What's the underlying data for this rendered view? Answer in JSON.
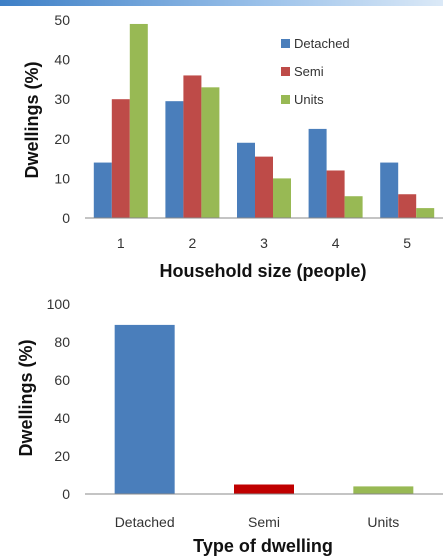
{
  "chart_data": [
    {
      "type": "bar",
      "xlabel": "Household size (people)",
      "ylabel": "Dwellings (%)",
      "categories": [
        "1",
        "2",
        "3",
        "4",
        "5"
      ],
      "ylim": [
        0,
        50
      ],
      "yticks": [
        0,
        10,
        20,
        30,
        40,
        50
      ],
      "grid": false,
      "legend": "top-right",
      "series": [
        {
          "name": "Detached",
          "color": "#4a7ebb",
          "values": [
            14,
            29.5,
            19,
            22.5,
            14
          ]
        },
        {
          "name": "Semi",
          "color": "#be4b48",
          "values": [
            30,
            36,
            15.5,
            12,
            6
          ]
        },
        {
          "name": "Units",
          "color": "#98b954",
          "values": [
            49,
            33,
            10,
            5.5,
            2.5
          ]
        }
      ]
    },
    {
      "type": "bar",
      "xlabel": "Type of dwelling",
      "ylabel": "Dwellings (%)",
      "categories": [
        "Detached",
        "Semi",
        "Units"
      ],
      "ylim": [
        0,
        100
      ],
      "yticks": [
        0,
        20,
        40,
        60,
        80,
        100
      ],
      "grid": false,
      "values": [
        89,
        5,
        4
      ],
      "colors": [
        "#4a7ebb",
        "#c00000",
        "#98b954"
      ]
    }
  ]
}
